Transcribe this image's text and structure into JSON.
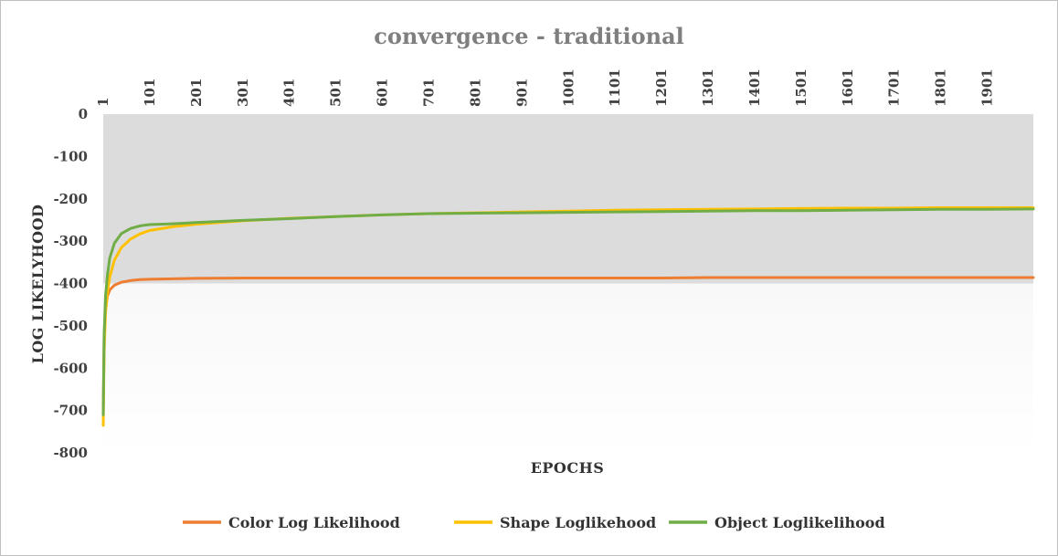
{
  "chart_data": {
    "type": "line",
    "title": "convergence  - traditional",
    "xlabel": "EPOCHS",
    "ylabel": "LOG LIKELYHOOD",
    "x_range": [
      1,
      2000
    ],
    "ylim": [
      -800,
      0
    ],
    "x_ticks": [
      1,
      101,
      201,
      301,
      401,
      501,
      601,
      701,
      801,
      901,
      1001,
      1101,
      1201,
      1301,
      1401,
      1501,
      1601,
      1701,
      1801,
      1901
    ],
    "y_ticks": [
      0,
      -100,
      -200,
      -300,
      -400,
      -500,
      -600,
      -700,
      -800
    ],
    "x_axis_position": "top",
    "legend_position": "bottom",
    "grid": false,
    "colors": {
      "plot_background_top": "#dcdcdc",
      "plot_background_bottom": "#ffffff"
    },
    "series": [
      {
        "name": "Color Log Likelihood",
        "color": "#ed7d31",
        "points": [
          [
            1,
            -700
          ],
          [
            3,
            -520
          ],
          [
            6,
            -460
          ],
          [
            10,
            -430
          ],
          [
            15,
            -415
          ],
          [
            25,
            -404
          ],
          [
            40,
            -397
          ],
          [
            60,
            -393
          ],
          [
            80,
            -391
          ],
          [
            100,
            -390
          ],
          [
            150,
            -389
          ],
          [
            200,
            -388
          ],
          [
            300,
            -387
          ],
          [
            500,
            -387
          ],
          [
            800,
            -387
          ],
          [
            1000,
            -387
          ],
          [
            1200,
            -387
          ],
          [
            1300,
            -386
          ],
          [
            1500,
            -386
          ],
          [
            1700,
            -386
          ],
          [
            2000,
            -386
          ]
        ]
      },
      {
        "name": "Shape Loglikehood",
        "color": "#ffc000",
        "points": [
          [
            1,
            -735
          ],
          [
            3,
            -560
          ],
          [
            6,
            -470
          ],
          [
            10,
            -420
          ],
          [
            15,
            -385
          ],
          [
            25,
            -345
          ],
          [
            40,
            -315
          ],
          [
            60,
            -295
          ],
          [
            80,
            -283
          ],
          [
            100,
            -275
          ],
          [
            150,
            -266
          ],
          [
            200,
            -260
          ],
          [
            300,
            -252
          ],
          [
            400,
            -246
          ],
          [
            500,
            -242
          ],
          [
            600,
            -238
          ],
          [
            700,
            -235
          ],
          [
            800,
            -233
          ],
          [
            900,
            -231
          ],
          [
            1000,
            -229
          ],
          [
            1100,
            -227
          ],
          [
            1200,
            -226
          ],
          [
            1300,
            -225
          ],
          [
            1400,
            -224
          ],
          [
            1500,
            -223
          ],
          [
            1600,
            -222
          ],
          [
            1700,
            -222
          ],
          [
            1800,
            -221
          ],
          [
            1900,
            -221
          ],
          [
            2000,
            -221
          ]
        ]
      },
      {
        "name": "Object Loglikelihood",
        "color": "#70ad47",
        "points": [
          [
            1,
            -710
          ],
          [
            3,
            -520
          ],
          [
            6,
            -430
          ],
          [
            10,
            -380
          ],
          [
            15,
            -340
          ],
          [
            25,
            -305
          ],
          [
            40,
            -282
          ],
          [
            60,
            -270
          ],
          [
            80,
            -264
          ],
          [
            100,
            -261
          ],
          [
            150,
            -259
          ],
          [
            200,
            -256
          ],
          [
            300,
            -251
          ],
          [
            400,
            -247
          ],
          [
            500,
            -242
          ],
          [
            600,
            -238
          ],
          [
            700,
            -235
          ],
          [
            800,
            -234
          ],
          [
            900,
            -233
          ],
          [
            1000,
            -232
          ],
          [
            1100,
            -231
          ],
          [
            1200,
            -230
          ],
          [
            1300,
            -229
          ],
          [
            1400,
            -228
          ],
          [
            1500,
            -228
          ],
          [
            1600,
            -227
          ],
          [
            1700,
            -226
          ],
          [
            1800,
            -225
          ],
          [
            1900,
            -225
          ],
          [
            2000,
            -224
          ]
        ]
      }
    ]
  }
}
